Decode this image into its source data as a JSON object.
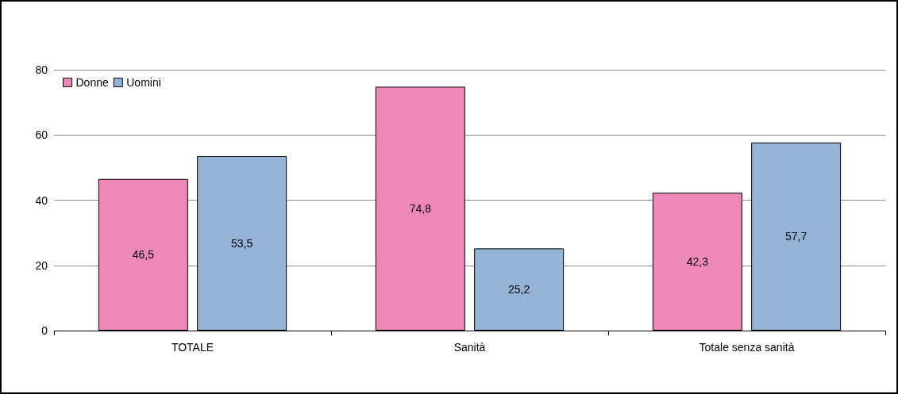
{
  "chart_data": {
    "type": "bar",
    "categories": [
      "TOTALE",
      "Sanità",
      "Totale senza sanità"
    ],
    "series": [
      {
        "name": "Donne",
        "color": "#ee88b8",
        "values": [
          46.5,
          74.8,
          42.3
        ],
        "value_labels": [
          "46,5",
          "74,8",
          "42,3"
        ]
      },
      {
        "name": "Uomini",
        "color": "#95b3d7",
        "values": [
          53.5,
          25.2,
          57.7
        ],
        "value_labels": [
          "53,5",
          "25,2",
          "57,7"
        ]
      }
    ],
    "ylim": [
      0,
      80
    ],
    "yticks": [
      0,
      20,
      40,
      60,
      80
    ],
    "grid": "y",
    "legend": "top left"
  }
}
